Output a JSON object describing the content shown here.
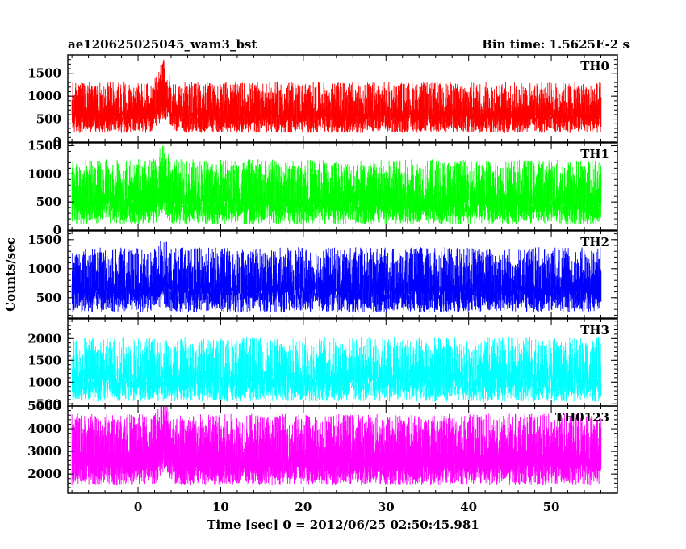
{
  "chart_data": {
    "type": "line",
    "title_left": "ae120625025045_wam3_bst",
    "title_right": "Bin time: 1.5625E-2 s",
    "xlabel": "Time [sec] 0 = 2012/06/25 02:50:45.981",
    "ylabel": "Counts/sec",
    "xlim": [
      -8.5,
      58
    ],
    "x_ticks": [
      0,
      10,
      20,
      30,
      40,
      50
    ],
    "x_tick_labels": [
      "0",
      "10",
      "20",
      "30",
      "40",
      "50"
    ],
    "data_x_range": [
      -8,
      56
    ],
    "bin_time": 0.015625,
    "grid": false,
    "panels": [
      {
        "name": "TH0",
        "color": "#ff0000",
        "ylim": [
          0,
          1900
        ],
        "y_ticks": [
          0,
          500,
          1000,
          1500
        ],
        "y_tick_labels": [
          "0",
          "500",
          "1000",
          "1500"
        ],
        "baseline_mean": 750,
        "noise_min": 200,
        "noise_max": 1350,
        "burst": {
          "t_peak": 3.0,
          "peak_rise": 500,
          "width_sec": 0.7
        }
      },
      {
        "name": "TH1",
        "color": "#00ff00",
        "ylim": [
          0,
          1550
        ],
        "y_ticks": [
          0,
          500,
          1000,
          1500
        ],
        "y_tick_labels": [
          "0",
          "500",
          "1000",
          "1500"
        ],
        "baseline_mean": 650,
        "noise_min": 100,
        "noise_max": 1350,
        "burst": {
          "t_peak": 3.0,
          "peak_rise": 250,
          "width_sec": 0.7
        }
      },
      {
        "name": "TH2",
        "color": "#0000ff",
        "ylim": [
          150,
          1650
        ],
        "y_ticks": [
          500,
          1000,
          1500
        ],
        "y_tick_labels": [
          "500",
          "1000",
          "1500"
        ],
        "baseline_mean": 780,
        "noise_min": 250,
        "noise_max": 1450,
        "burst": {
          "t_peak": 3.0,
          "peak_rise": 150,
          "width_sec": 0.7
        }
      },
      {
        "name": "TH3",
        "color": "#00ffff",
        "ylim": [
          450,
          2450
        ],
        "y_ticks": [
          500,
          1000,
          1500,
          2000
        ],
        "y_tick_labels": [
          "500",
          "1000",
          "1500",
          "2000"
        ],
        "baseline_mean": 1200,
        "noise_min": 550,
        "noise_max": 2250,
        "burst": {
          "t_peak": 3.0,
          "peak_rise": 0,
          "width_sec": 0.7
        }
      },
      {
        "name": "TH0123",
        "color": "#ff00ff",
        "ylim": [
          1150,
          5000
        ],
        "y_ticks": [
          2000,
          3000,
          4000,
          5000
        ],
        "y_tick_labels": [
          "2000",
          "3000",
          "4000",
          "5000"
        ],
        "baseline_mean": 3200,
        "noise_min": 1500,
        "noise_max": 4500,
        "burst": {
          "t_peak": 3.0,
          "peak_rise": 900,
          "width_sec": 0.7
        }
      }
    ]
  }
}
